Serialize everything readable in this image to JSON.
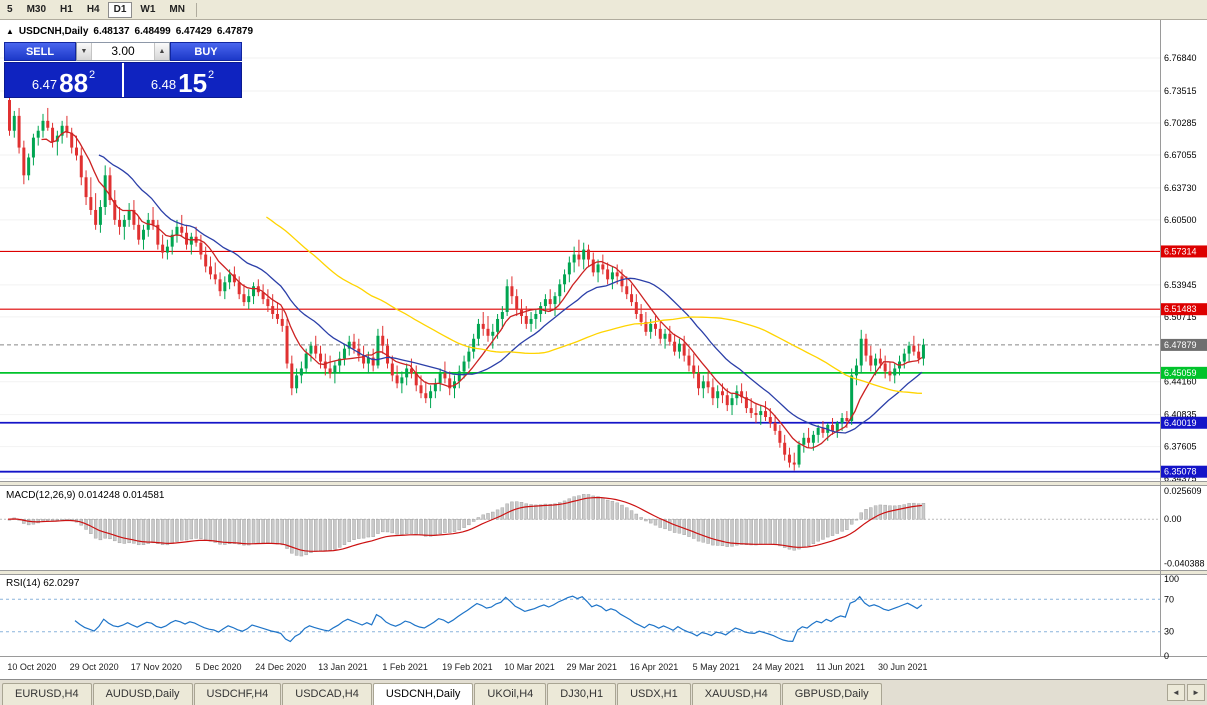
{
  "toolbar": {
    "timeframes": [
      {
        "label": "5",
        "active": false
      },
      {
        "label": "M30",
        "active": false
      },
      {
        "label": "H1",
        "active": false
      },
      {
        "label": "H4",
        "active": false
      },
      {
        "label": "D1",
        "active": true
      },
      {
        "label": "W1",
        "active": false
      },
      {
        "label": "MN",
        "active": false
      }
    ]
  },
  "chart": {
    "collapse_arrow": "▲",
    "symbol": "USDCNH,Daily",
    "open": "6.48137",
    "high": "6.48499",
    "low": "6.47429",
    "close": "6.47879"
  },
  "trade_panel": {
    "sell_label": "SELL",
    "buy_label": "BUY",
    "volume": "3.00",
    "spinner_down": "▼",
    "spinner_up": "▲",
    "sell_price": {
      "main": "6.47",
      "big": "88",
      "sup": "2"
    },
    "buy_price": {
      "main": "6.48",
      "big": "15",
      "sup": "2"
    }
  },
  "price_axis": {
    "labels": [
      "6.76840",
      "6.73515",
      "6.70285",
      "6.67055",
      "6.63730",
      "6.60500",
      "6.53945",
      "6.50715",
      "6.44160",
      "6.40835",
      "6.37605",
      "6.34375"
    ]
  },
  "hlines": [
    {
      "price": 6.57314,
      "label": "6.57314",
      "color": "#dd0000",
      "width": 1.2
    },
    {
      "price": 6.51483,
      "label": "6.51483",
      "color": "#dd0000",
      "width": 1.2
    },
    {
      "price": 6.45059,
      "label": "6.45059",
      "color": "#00c32b",
      "width": 1.8
    },
    {
      "price": 6.40019,
      "label": "6.40019",
      "color": "#1414c8",
      "width": 1.8
    },
    {
      "price": 6.35078,
      "label": "6.35078",
      "color": "#1414c8",
      "width": 1.8
    }
  ],
  "current_price": {
    "price": 6.47879,
    "label": "6.47879",
    "tag_color": "#6f6f6f"
  },
  "indicators": {
    "macd": {
      "label": "MACD(12,26,9) 0.014248 0.014581",
      "params": {
        "fast": 12,
        "slow": 26,
        "signal": 9
      },
      "axis_labels": [
        {
          "text": "0.025609",
          "value": 0.025609
        },
        {
          "text": "0.00",
          "value": 0
        },
        {
          "text": "-0.040388",
          "value": -0.040388
        }
      ],
      "histogram_color": "#c9c9c9",
      "signal_color": "#cc1111"
    },
    "rsi": {
      "label": "RSI(14) 62.0297",
      "period": 14,
      "axis_labels": [
        {
          "text": "100",
          "value": 100
        },
        {
          "text": "70",
          "value": 70
        },
        {
          "text": "30",
          "value": 30
        },
        {
          "text": "0",
          "value": 0
        }
      ],
      "levels": [
        70,
        30
      ],
      "line_color": "#1e74c8"
    }
  },
  "tabs": {
    "scroll_left": "◄",
    "scroll_right": "►",
    "items": [
      {
        "label": "EURUSD,H4",
        "active": false
      },
      {
        "label": "AUDUSD,Daily",
        "active": false
      },
      {
        "label": "USDCHF,H4",
        "active": false
      },
      {
        "label": "USDCAD,H4",
        "active": false
      },
      {
        "label": "USDCNH,Daily",
        "active": true
      },
      {
        "label": "UKOil,H4",
        "active": false
      },
      {
        "label": "DJ30,H1",
        "active": false
      },
      {
        "label": "USDX,H1",
        "active": false
      },
      {
        "label": "XAUUSD,H4",
        "active": false
      },
      {
        "label": "GBPUSD,Daily",
        "active": false
      }
    ]
  },
  "chart_data": {
    "type": "candlestick",
    "symbol": "USDCNH",
    "period": "Daily",
    "visible_range": {
      "min": 6.3414,
      "max": 6.7866
    },
    "bull_color": "#00a551",
    "bear_color": "#e03131",
    "moving_averages": [
      {
        "period": 8,
        "color": "#cc2222"
      },
      {
        "period": 20,
        "color": "#2b3fa8"
      },
      {
        "period": 55,
        "color": "#ffd400"
      }
    ],
    "x_labels": [
      {
        "text": "10 Oct 2020",
        "day": 5
      },
      {
        "text": "29 Oct 2020",
        "day": 18
      },
      {
        "text": "17 Nov 2020",
        "day": 31
      },
      {
        "text": "5 Dec 2020",
        "day": 44
      },
      {
        "text": "24 Dec 2020",
        "day": 57
      },
      {
        "text": "13 Jan 2021",
        "day": 70
      },
      {
        "text": "1 Feb 2021",
        "day": 83
      },
      {
        "text": "19 Feb 2021",
        "day": 96
      },
      {
        "text": "10 Mar 2021",
        "day": 109
      },
      {
        "text": "29 Mar 2021",
        "day": 122
      },
      {
        "text": "16 Apr 2021",
        "day": 135
      },
      {
        "text": "5 May 2021",
        "day": 148
      },
      {
        "text": "24 May 2021",
        "day": 161
      },
      {
        "text": "11 Jun 2021",
        "day": 174
      },
      {
        "text": "30 Jun 2021",
        "day": 187
      }
    ],
    "candles": [
      [
        6.726,
        6.731,
        6.69,
        6.695
      ],
      [
        6.695,
        6.715,
        6.688,
        6.71
      ],
      [
        6.71,
        6.718,
        6.672,
        6.678
      ],
      [
        6.678,
        6.685,
        6.641,
        6.65
      ],
      [
        6.65,
        6.672,
        6.645,
        6.668
      ],
      [
        6.668,
        6.692,
        6.66,
        6.688
      ],
      [
        6.688,
        6.7,
        6.68,
        6.695
      ],
      [
        6.695,
        6.712,
        6.688,
        6.705
      ],
      [
        6.705,
        6.718,
        6.695,
        6.698
      ],
      [
        6.698,
        6.703,
        6.678,
        6.684
      ],
      [
        6.684,
        6.695,
        6.67,
        6.69
      ],
      [
        6.69,
        6.705,
        6.682,
        6.7
      ],
      [
        6.7,
        6.71,
        6.688,
        6.693
      ],
      [
        6.693,
        6.698,
        6.672,
        6.678
      ],
      [
        6.678,
        6.69,
        6.665,
        6.67
      ],
      [
        6.67,
        6.678,
        6.64,
        6.648
      ],
      [
        6.648,
        6.655,
        6.62,
        6.628
      ],
      [
        6.628,
        6.648,
        6.61,
        6.615
      ],
      [
        6.615,
        6.632,
        6.595,
        6.6
      ],
      [
        6.6,
        6.625,
        6.592,
        6.618
      ],
      [
        6.618,
        6.66,
        6.61,
        6.65
      ],
      [
        6.65,
        6.658,
        6.62,
        6.625
      ],
      [
        6.625,
        6.635,
        6.6,
        6.605
      ],
      [
        6.605,
        6.618,
        6.59,
        6.598
      ],
      [
        6.598,
        6.61,
        6.585,
        6.605
      ],
      [
        6.605,
        6.622,
        6.598,
        6.615
      ],
      [
        6.615,
        6.625,
        6.595,
        6.6
      ],
      [
        6.6,
        6.608,
        6.58,
        6.585
      ],
      [
        6.585,
        6.6,
        6.575,
        6.595
      ],
      [
        6.595,
        6.612,
        6.588,
        6.605
      ],
      [
        6.605,
        6.618,
        6.595,
        6.6
      ],
      [
        6.6,
        6.605,
        6.575,
        6.58
      ],
      [
        6.58,
        6.59,
        6.566,
        6.572
      ],
      [
        6.572,
        6.585,
        6.565,
        6.578
      ],
      [
        6.578,
        6.595,
        6.57,
        6.59
      ],
      [
        6.59,
        6.605,
        6.582,
        6.598
      ],
      [
        6.598,
        6.61,
        6.588,
        6.592
      ],
      [
        6.592,
        6.6,
        6.575,
        6.58
      ],
      [
        6.58,
        6.592,
        6.57,
        6.588
      ],
      [
        6.588,
        6.598,
        6.578,
        6.582
      ],
      [
        6.582,
        6.59,
        6.565,
        6.57
      ],
      [
        6.57,
        6.578,
        6.552,
        6.558
      ],
      [
        6.558,
        6.568,
        6.545,
        6.55
      ],
      [
        6.55,
        6.562,
        6.54,
        6.545
      ],
      [
        6.545,
        6.552,
        6.528,
        6.533
      ],
      [
        6.533,
        6.548,
        6.525,
        6.542
      ],
      [
        6.542,
        6.555,
        6.535,
        6.55
      ],
      [
        6.55,
        6.558,
        6.538,
        6.542
      ],
      [
        6.542,
        6.548,
        6.525,
        6.53
      ],
      [
        6.53,
        6.54,
        6.518,
        6.522
      ],
      [
        6.522,
        6.535,
        6.515,
        6.528
      ],
      [
        6.528,
        6.542,
        6.52,
        6.538
      ],
      [
        6.538,
        6.545,
        6.528,
        6.532
      ],
      [
        6.532,
        6.54,
        6.52,
        6.525
      ],
      [
        6.525,
        6.535,
        6.512,
        6.518
      ],
      [
        6.518,
        6.53,
        6.505,
        6.51
      ],
      [
        6.51,
        6.522,
        6.5,
        6.505
      ],
      [
        6.505,
        6.515,
        6.492,
        6.498
      ],
      [
        6.498,
        6.505,
        6.455,
        6.46
      ],
      [
        6.46,
        6.468,
        6.428,
        6.435
      ],
      [
        6.435,
        6.455,
        6.43,
        6.448
      ],
      [
        6.448,
        6.462,
        6.44,
        6.455
      ],
      [
        6.455,
        6.475,
        6.45,
        6.47
      ],
      [
        6.47,
        6.482,
        6.462,
        6.478
      ],
      [
        6.478,
        6.488,
        6.465,
        6.47
      ],
      [
        6.47,
        6.478,
        6.455,
        6.462
      ],
      [
        6.462,
        6.47,
        6.448,
        6.455
      ],
      [
        6.455,
        6.468,
        6.445,
        6.45
      ],
      [
        6.45,
        6.462,
        6.44,
        6.458
      ],
      [
        6.458,
        6.472,
        6.45,
        6.465
      ],
      [
        6.465,
        6.48,
        6.458,
        6.475
      ],
      [
        6.475,
        6.488,
        6.468,
        6.482
      ],
      [
        6.482,
        6.49,
        6.47,
        6.475
      ],
      [
        6.475,
        6.485,
        6.462,
        6.468
      ],
      [
        6.468,
        6.478,
        6.455,
        6.46
      ],
      [
        6.46,
        6.472,
        6.45,
        6.466
      ],
      [
        6.466,
        6.475,
        6.452,
        6.458
      ],
      [
        6.458,
        6.495,
        6.455,
        6.488
      ],
      [
        6.488,
        6.498,
        6.47,
        6.478
      ],
      [
        6.478,
        6.485,
        6.455,
        6.46
      ],
      [
        6.46,
        6.468,
        6.442,
        6.448
      ],
      [
        6.448,
        6.458,
        6.435,
        6.44
      ],
      [
        6.44,
        6.452,
        6.43,
        6.446
      ],
      [
        6.446,
        6.46,
        6.438,
        6.455
      ],
      [
        6.455,
        6.465,
        6.445,
        6.45
      ],
      [
        6.45,
        6.458,
        6.432,
        6.438
      ],
      [
        6.438,
        6.448,
        6.425,
        6.43
      ],
      [
        6.43,
        6.442,
        6.42,
        6.425
      ],
      [
        6.425,
        6.438,
        6.415,
        6.432
      ],
      [
        6.432,
        6.445,
        6.425,
        6.44
      ],
      [
        6.44,
        6.455,
        6.432,
        6.45
      ],
      [
        6.45,
        6.462,
        6.44,
        6.445
      ],
      [
        6.445,
        6.452,
        6.428,
        6.435
      ],
      [
        6.435,
        6.448,
        6.425,
        6.442
      ],
      [
        6.442,
        6.458,
        6.435,
        6.452
      ],
      [
        6.452,
        6.468,
        6.445,
        6.462
      ],
      [
        6.462,
        6.478,
        6.455,
        6.472
      ],
      [
        6.472,
        6.49,
        6.465,
        6.485
      ],
      [
        6.485,
        6.505,
        6.478,
        6.5
      ],
      [
        6.5,
        6.512,
        6.488,
        6.495
      ],
      [
        6.495,
        6.508,
        6.482,
        6.488
      ],
      [
        6.488,
        6.5,
        6.475,
        6.492
      ],
      [
        6.492,
        6.51,
        6.485,
        6.505
      ],
      [
        6.505,
        6.518,
        6.495,
        6.512
      ],
      [
        6.512,
        6.545,
        6.508,
        6.538
      ],
      [
        6.538,
        6.548,
        6.52,
        6.528
      ],
      [
        6.528,
        6.535,
        6.508,
        6.515
      ],
      [
        6.515,
        6.525,
        6.5,
        6.508
      ],
      [
        6.508,
        6.518,
        6.495,
        6.5
      ],
      [
        6.5,
        6.512,
        6.492,
        6.505
      ],
      [
        6.505,
        6.515,
        6.495,
        6.51
      ],
      [
        6.51,
        6.522,
        6.502,
        6.518
      ],
      [
        6.518,
        6.53,
        6.51,
        6.525
      ],
      [
        6.525,
        6.535,
        6.512,
        6.52
      ],
      [
        6.52,
        6.532,
        6.508,
        6.528
      ],
      [
        6.528,
        6.545,
        6.52,
        6.54
      ],
      [
        6.54,
        6.555,
        6.532,
        6.55
      ],
      [
        6.55,
        6.568,
        6.542,
        6.562
      ],
      [
        6.562,
        6.578,
        6.552,
        6.57
      ],
      [
        6.57,
        6.585,
        6.558,
        6.565
      ],
      [
        6.565,
        6.582,
        6.555,
        6.575
      ],
      [
        6.575,
        6.58,
        6.558,
        6.565
      ],
      [
        6.565,
        6.572,
        6.548,
        6.552
      ],
      [
        6.552,
        6.565,
        6.542,
        6.56
      ],
      [
        6.56,
        6.57,
        6.55,
        6.555
      ],
      [
        6.555,
        6.562,
        6.54,
        6.545
      ],
      [
        6.545,
        6.558,
        6.535,
        6.552
      ],
      [
        6.552,
        6.56,
        6.54,
        6.548
      ],
      [
        6.548,
        6.555,
        6.532,
        6.538
      ],
      [
        6.538,
        6.548,
        6.525,
        6.53
      ],
      [
        6.53,
        6.54,
        6.518,
        6.522
      ],
      [
        6.522,
        6.53,
        6.505,
        6.51
      ],
      [
        6.51,
        6.52,
        6.498,
        6.502
      ],
      [
        6.502,
        6.512,
        6.488,
        6.492
      ],
      [
        6.492,
        6.505,
        6.485,
        6.5
      ],
      [
        6.5,
        6.508,
        6.488,
        6.495
      ],
      [
        6.495,
        6.502,
        6.48,
        6.485
      ],
      [
        6.485,
        6.495,
        6.475,
        6.49
      ],
      [
        6.49,
        6.498,
        6.478,
        6.482
      ],
      [
        6.482,
        6.49,
        6.468,
        6.472
      ],
      [
        6.472,
        6.485,
        6.465,
        6.48
      ],
      [
        6.48,
        6.488,
        6.462,
        6.468
      ],
      [
        6.468,
        6.475,
        6.452,
        6.458
      ],
      [
        6.458,
        6.47,
        6.445,
        6.45
      ],
      [
        6.45,
        6.458,
        6.428,
        6.435
      ],
      [
        6.435,
        6.448,
        6.425,
        6.442
      ],
      [
        6.442,
        6.452,
        6.43,
        6.436
      ],
      [
        6.436,
        6.445,
        6.418,
        6.425
      ],
      [
        6.425,
        6.438,
        6.415,
        6.432
      ],
      [
        6.432,
        6.44,
        6.42,
        6.428
      ],
      [
        6.428,
        6.435,
        6.412,
        6.418
      ],
      [
        6.418,
        6.43,
        6.408,
        6.425
      ],
      [
        6.425,
        6.438,
        6.418,
        6.432
      ],
      [
        6.432,
        6.44,
        6.42,
        6.426
      ],
      [
        6.426,
        6.432,
        6.41,
        6.415
      ],
      [
        6.415,
        6.425,
        6.405,
        6.41
      ],
      [
        6.41,
        6.42,
        6.4,
        6.408
      ],
      [
        6.408,
        6.418,
        6.398,
        6.412
      ],
      [
        6.412,
        6.422,
        6.402,
        6.406
      ],
      [
        6.406,
        6.415,
        6.395,
        6.4
      ],
      [
        6.4,
        6.408,
        6.388,
        6.392
      ],
      [
        6.392,
        6.398,
        6.375,
        6.38
      ],
      [
        6.38,
        6.388,
        6.362,
        6.368
      ],
      [
        6.368,
        6.375,
        6.355,
        6.36
      ],
      [
        6.36,
        6.37,
        6.352,
        6.358
      ],
      [
        6.358,
        6.382,
        6.355,
        6.378
      ],
      [
        6.378,
        6.39,
        6.37,
        6.385
      ],
      [
        6.385,
        6.395,
        6.375,
        6.38
      ],
      [
        6.38,
        6.392,
        6.372,
        6.388
      ],
      [
        6.388,
        6.398,
        6.38,
        6.395
      ],
      [
        6.395,
        6.402,
        6.385,
        6.39
      ],
      [
        6.39,
        6.4,
        6.382,
        6.398
      ],
      [
        6.398,
        6.405,
        6.388,
        6.392
      ],
      [
        6.392,
        6.402,
        6.385,
        6.4
      ],
      [
        6.4,
        6.41,
        6.392,
        6.405
      ],
      [
        6.405,
        6.412,
        6.395,
        6.402
      ],
      [
        6.402,
        6.455,
        6.398,
        6.448
      ],
      [
        6.448,
        6.465,
        6.438,
        6.458
      ],
      [
        6.458,
        6.494,
        6.45,
        6.485
      ],
      [
        6.485,
        6.49,
        6.462,
        6.468
      ],
      [
        6.468,
        6.478,
        6.452,
        6.458
      ],
      [
        6.458,
        6.47,
        6.448,
        6.465
      ],
      [
        6.465,
        6.475,
        6.455,
        6.46
      ],
      [
        6.46,
        6.468,
        6.445,
        6.452
      ],
      [
        6.452,
        6.462,
        6.442,
        6.448
      ],
      [
        6.448,
        6.46,
        6.44,
        6.455
      ],
      [
        6.455,
        6.468,
        6.448,
        6.462
      ],
      [
        6.462,
        6.475,
        6.455,
        6.47
      ],
      [
        6.47,
        6.482,
        6.462,
        6.478
      ],
      [
        6.478,
        6.488,
        6.468,
        6.472
      ],
      [
        6.472,
        6.48,
        6.46,
        6.465
      ],
      [
        6.465,
        6.485,
        6.458,
        6.479
      ]
    ]
  }
}
